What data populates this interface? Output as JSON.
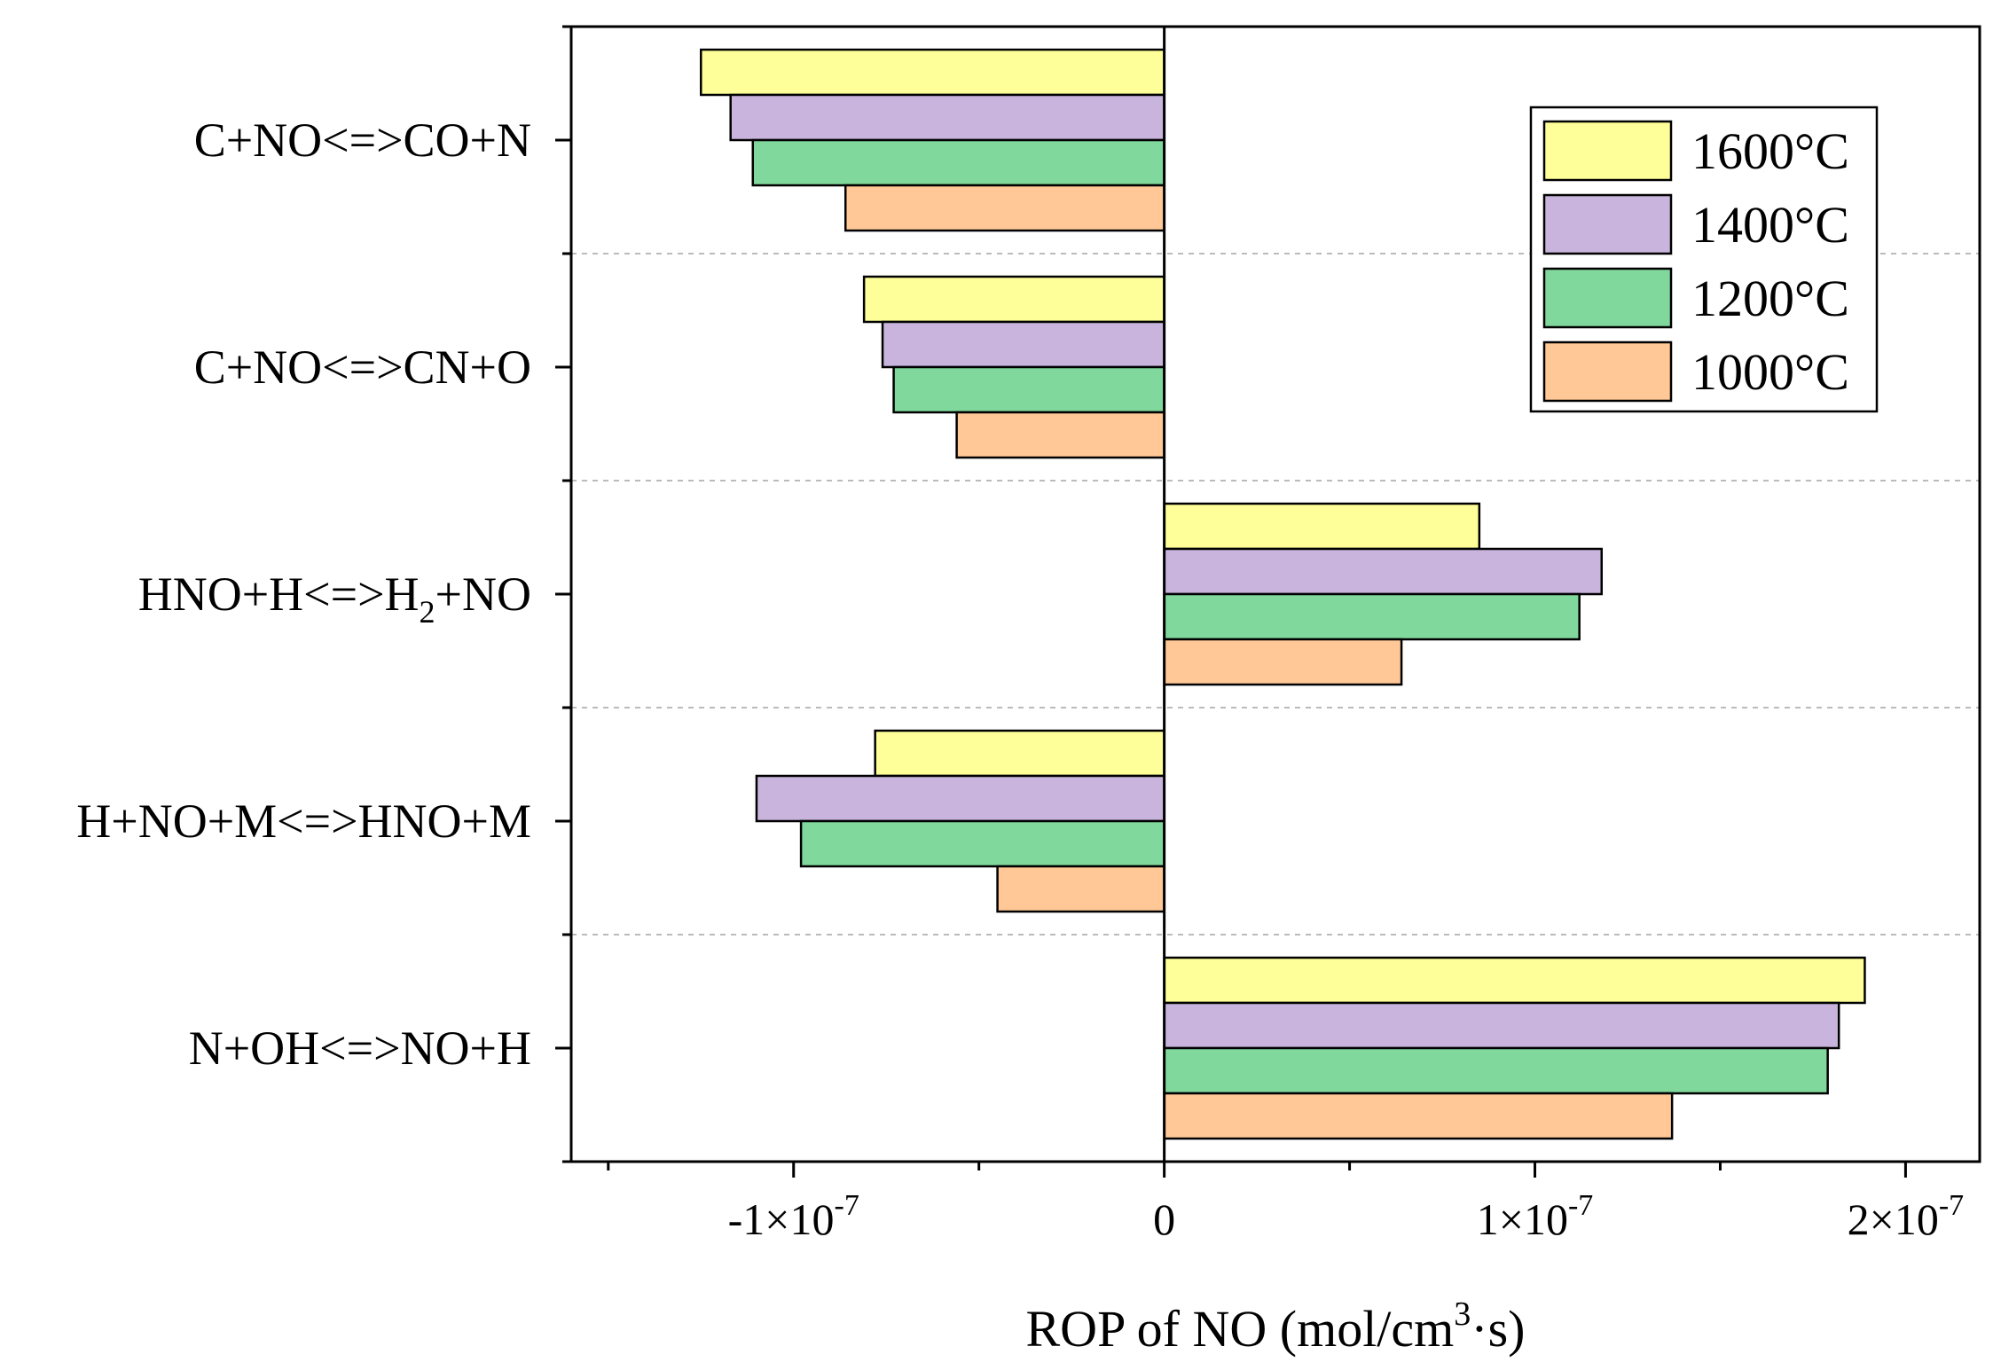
{
  "chart_data": {
    "type": "bar",
    "orientation": "horizontal",
    "title": "",
    "xlabel": "ROP of NO (mol/cm³·s)",
    "xlabel_parts": {
      "prefix": "ROP of NO (mol/cm",
      "sup": "3",
      "suffix": "·s)"
    },
    "ylabel": "",
    "xlim": [
      -1.6e-07,
      2.2e-07
    ],
    "x_ticks": [
      {
        "value": -1e-07,
        "mantissa": "-1×10",
        "exp": "-7"
      },
      {
        "value": 0,
        "mantissa": "0",
        "exp": ""
      },
      {
        "value": 1e-07,
        "mantissa": "1×10",
        "exp": "-7"
      },
      {
        "value": 2e-07,
        "mantissa": "2×10",
        "exp": "-7"
      }
    ],
    "categories": [
      {
        "text": "C+NO<=>CO+N",
        "parts": [
          {
            "t": "C+NO<=>CO+N"
          }
        ]
      },
      {
        "text": "C+NO<=>CN+O",
        "parts": [
          {
            "t": "C+NO<=>CN+O"
          }
        ]
      },
      {
        "text": "HNO+H<=>H2+NO",
        "parts": [
          {
            "t": "HNO+H<=>H"
          },
          {
            "t": "2",
            "sub": true
          },
          {
            "t": "+NO"
          }
        ]
      },
      {
        "text": "H+NO+M<=>HNO+M",
        "parts": [
          {
            "t": "H+NO+M<=>HNO+M"
          }
        ]
      },
      {
        "text": "N+OH<=>NO+H",
        "parts": [
          {
            "t": "N+OH<=>NO+H"
          }
        ]
      }
    ],
    "series": [
      {
        "name": "1600°C",
        "color": "#ffff99",
        "values": [
          -1.25e-07,
          -8.1e-08,
          8.5e-08,
          -7.8e-08,
          1.89e-07
        ]
      },
      {
        "name": "1400°C",
        "color": "#c8b4dc",
        "values": [
          -1.17e-07,
          -7.6e-08,
          1.18e-07,
          -1.1e-07,
          1.82e-07
        ]
      },
      {
        "name": "1200°C",
        "color": "#80d89c",
        "values": [
          -1.11e-07,
          -7.3e-08,
          1.12e-07,
          -9.8e-08,
          1.79e-07
        ]
      },
      {
        "name": "1000°C",
        "color": "#ffc896",
        "values": [
          -8.6e-08,
          -5.6e-08,
          6.4e-08,
          -4.5e-08,
          1.37e-07
        ]
      }
    ],
    "grid": "horizontal-dashed-separators",
    "legend_position": "top-right"
  }
}
